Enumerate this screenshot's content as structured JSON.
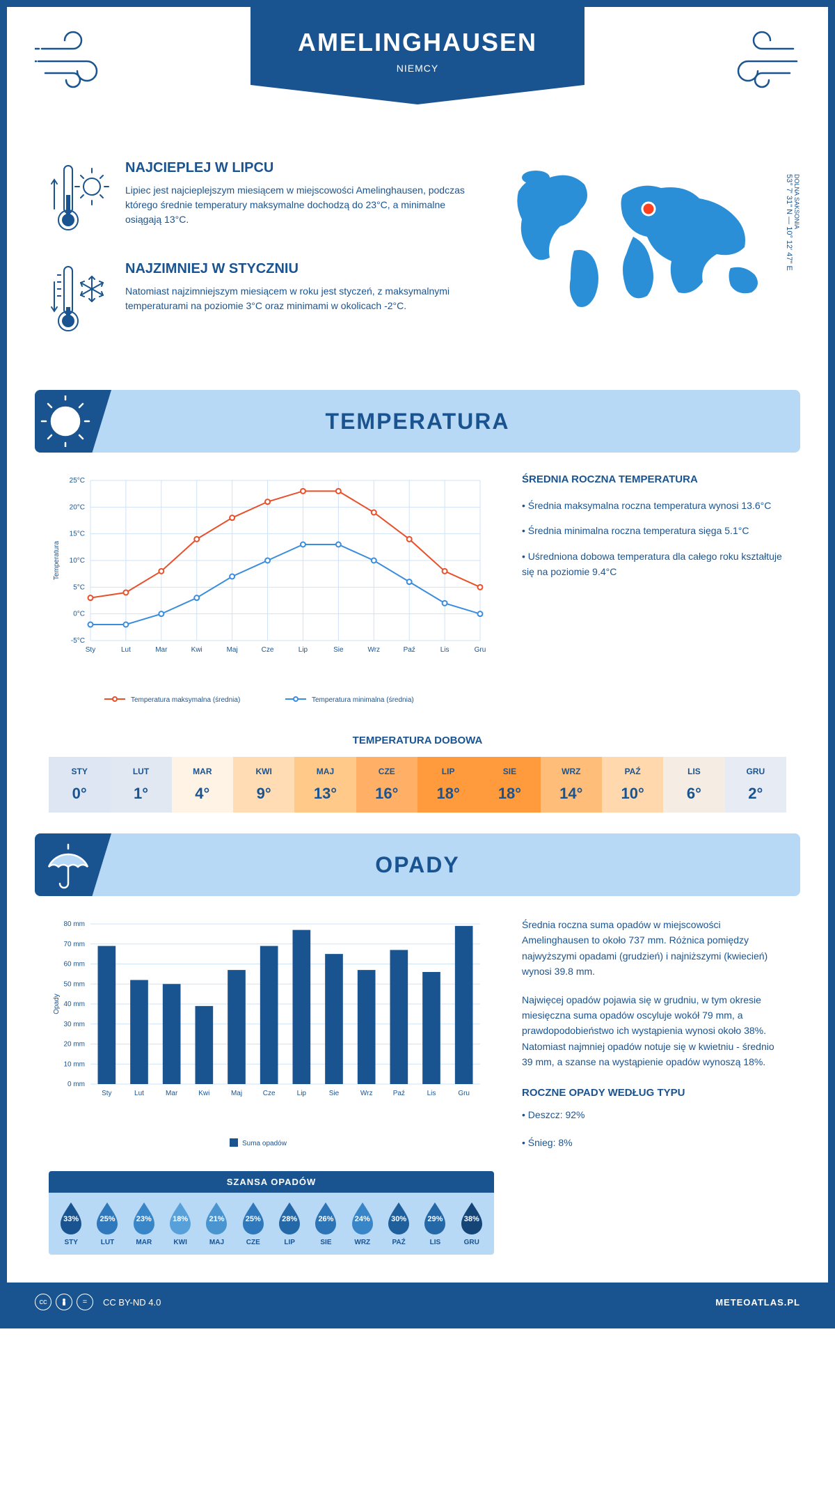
{
  "header": {
    "city": "AMELINGHAUSEN",
    "country": "NIEMCY"
  },
  "coords": {
    "lat": "53° 7' 31\" N — 10° 12' 47\" E",
    "region": "DOLNA SAKSONIA"
  },
  "intro": {
    "warmest": {
      "title": "NAJCIEPLEJ W LIPCU",
      "text": "Lipiec jest najcieplejszym miesiącem w miejscowości Amelinghausen, podczas którego średnie temperatury maksymalne dochodzą do 23°C, a minimalne osiągają 13°C."
    },
    "coldest": {
      "title": "NAJZIMNIEJ W STYCZNIU",
      "text": "Natomiast najzimniejszym miesiącem w roku jest styczeń, z maksymalnymi temperaturami na poziomie 3°C oraz minimami w okolicach -2°C."
    }
  },
  "temperature": {
    "section_title": "TEMPERATURA",
    "chart": {
      "type": "line",
      "months": [
        "Sty",
        "Lut",
        "Mar",
        "Kwi",
        "Maj",
        "Cze",
        "Lip",
        "Sie",
        "Wrz",
        "Paź",
        "Lis",
        "Gru"
      ],
      "max_series": {
        "label": "Temperatura maksymalna (średnia)",
        "color": "#e8502a",
        "values": [
          3,
          4,
          8,
          14,
          18,
          21,
          23,
          23,
          19,
          14,
          8,
          5
        ]
      },
      "min_series": {
        "label": "Temperatura minimalna (średnia)",
        "color": "#3a8dde",
        "values": [
          -2,
          -2,
          0,
          3,
          7,
          10,
          13,
          13,
          10,
          6,
          2,
          0
        ]
      },
      "y_min": -5,
      "y_max": 25,
      "y_step": 5,
      "y_axis_label": "Temperatura",
      "grid_color": "#cfe3f7",
      "line_width": 2
    },
    "info": {
      "title": "ŚREDNIA ROCZNA TEMPERATURA",
      "bullets": [
        "• Średnia maksymalna roczna temperatura wynosi 13.6°C",
        "• Średnia minimalna roczna temperatura sięga 5.1°C",
        "• Uśredniona dobowa temperatura dla całego roku kształtuje się na poziomie 9.4°C"
      ]
    },
    "daily": {
      "title": "TEMPERATURA DOBOWA",
      "months": [
        "STY",
        "LUT",
        "MAR",
        "KWI",
        "MAJ",
        "CZE",
        "LIP",
        "SIE",
        "WRZ",
        "PAŹ",
        "LIS",
        "GRU"
      ],
      "values": [
        "0°",
        "1°",
        "4°",
        "9°",
        "13°",
        "16°",
        "18°",
        "18°",
        "14°",
        "10°",
        "6°",
        "2°"
      ],
      "colors": [
        "#dde6f2",
        "#e2e8f2",
        "#fff3e6",
        "#ffdcb3",
        "#ffc98a",
        "#ffb066",
        "#ff9a3d",
        "#ff9a3d",
        "#ffbd7a",
        "#ffd9ad",
        "#f5ece3",
        "#e6ebf4"
      ]
    }
  },
  "precipitation": {
    "section_title": "OPADY",
    "chart": {
      "type": "bar",
      "months": [
        "Sty",
        "Lut",
        "Mar",
        "Kwi",
        "Maj",
        "Cze",
        "Lip",
        "Sie",
        "Wrz",
        "Paź",
        "Lis",
        "Gru"
      ],
      "values": [
        69,
        52,
        50,
        39,
        57,
        69,
        77,
        65,
        57,
        67,
        56,
        79
      ],
      "y_min": 0,
      "y_max": 80,
      "y_step": 10,
      "y_axis_label": "Opady",
      "legend": "Suma opadów",
      "bar_color": "#1a5490",
      "grid_color": "#cfe3f7"
    },
    "info": {
      "para1": "Średnia roczna suma opadów w miejscowości Amelinghausen to około 737 mm. Różnica pomiędzy najwyższymi opadami (grudzień) i najniższymi (kwiecień) wynosi 39.8 mm.",
      "para2": "Najwięcej opadów pojawia się w grudniu, w tym okresie miesięczna suma opadów oscyluje wokół 79 mm, a prawdopodobieństwo ich wystąpienia wynosi około 38%. Natomiast najmniej opadów notuje się w kwietniu - średnio 39 mm, a szanse na wystąpienie opadów wynoszą 18%.",
      "by_type_title": "ROCZNE OPADY WEDŁUG TYPU",
      "by_type": [
        "• Deszcz: 92%",
        "• Śnieg: 8%"
      ]
    },
    "chance": {
      "title": "SZANSA OPADÓW",
      "months": [
        "STY",
        "LUT",
        "MAR",
        "KWI",
        "MAJ",
        "CZE",
        "LIP",
        "SIE",
        "WRZ",
        "PAŹ",
        "LIS",
        "GRU"
      ],
      "values": [
        "33%",
        "25%",
        "23%",
        "18%",
        "21%",
        "25%",
        "28%",
        "26%",
        "24%",
        "30%",
        "29%",
        "38%"
      ],
      "shades": [
        "#1a5490",
        "#2f78bb",
        "#3885c7",
        "#57a0d9",
        "#4a95d0",
        "#2f78bb",
        "#2468a8",
        "#2c74b5",
        "#3885c7",
        "#1f5f9c",
        "#2468a8",
        "#144576"
      ]
    }
  },
  "footer": {
    "license": "CC BY-ND 4.0",
    "site": "METEOATLAS.PL"
  }
}
